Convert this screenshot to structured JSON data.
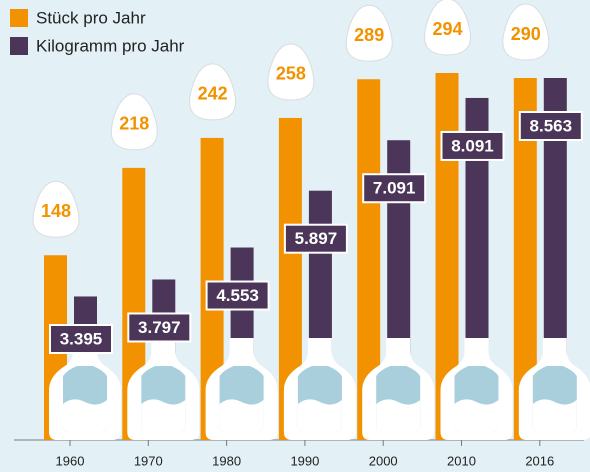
{
  "chart_data": {
    "type": "bar",
    "categories": [
      "1960",
      "1970",
      "1980",
      "1990",
      "2000",
      "2010",
      "2016"
    ],
    "series": [
      {
        "name": "Stück pro Jahr",
        "color": "#f39200",
        "values": [
          148,
          218,
          242,
          258,
          289,
          294,
          290
        ]
      },
      {
        "name": "Kilogramm pro Jahr",
        "color": "#4b3558",
        "axis": "y2",
        "values": [
          3.395,
          3.797,
          4.553,
          5.897,
          7.091,
          8.091,
          8.563
        ],
        "value_labels": [
          "3.395",
          "3.797",
          "4.553",
          "5.897",
          "7.091",
          "8.091",
          "8.563"
        ]
      }
    ],
    "ylim": [
      0,
      290
    ],
    "y2lim": [
      0,
      8.563
    ],
    "legend": "top-left"
  }
}
